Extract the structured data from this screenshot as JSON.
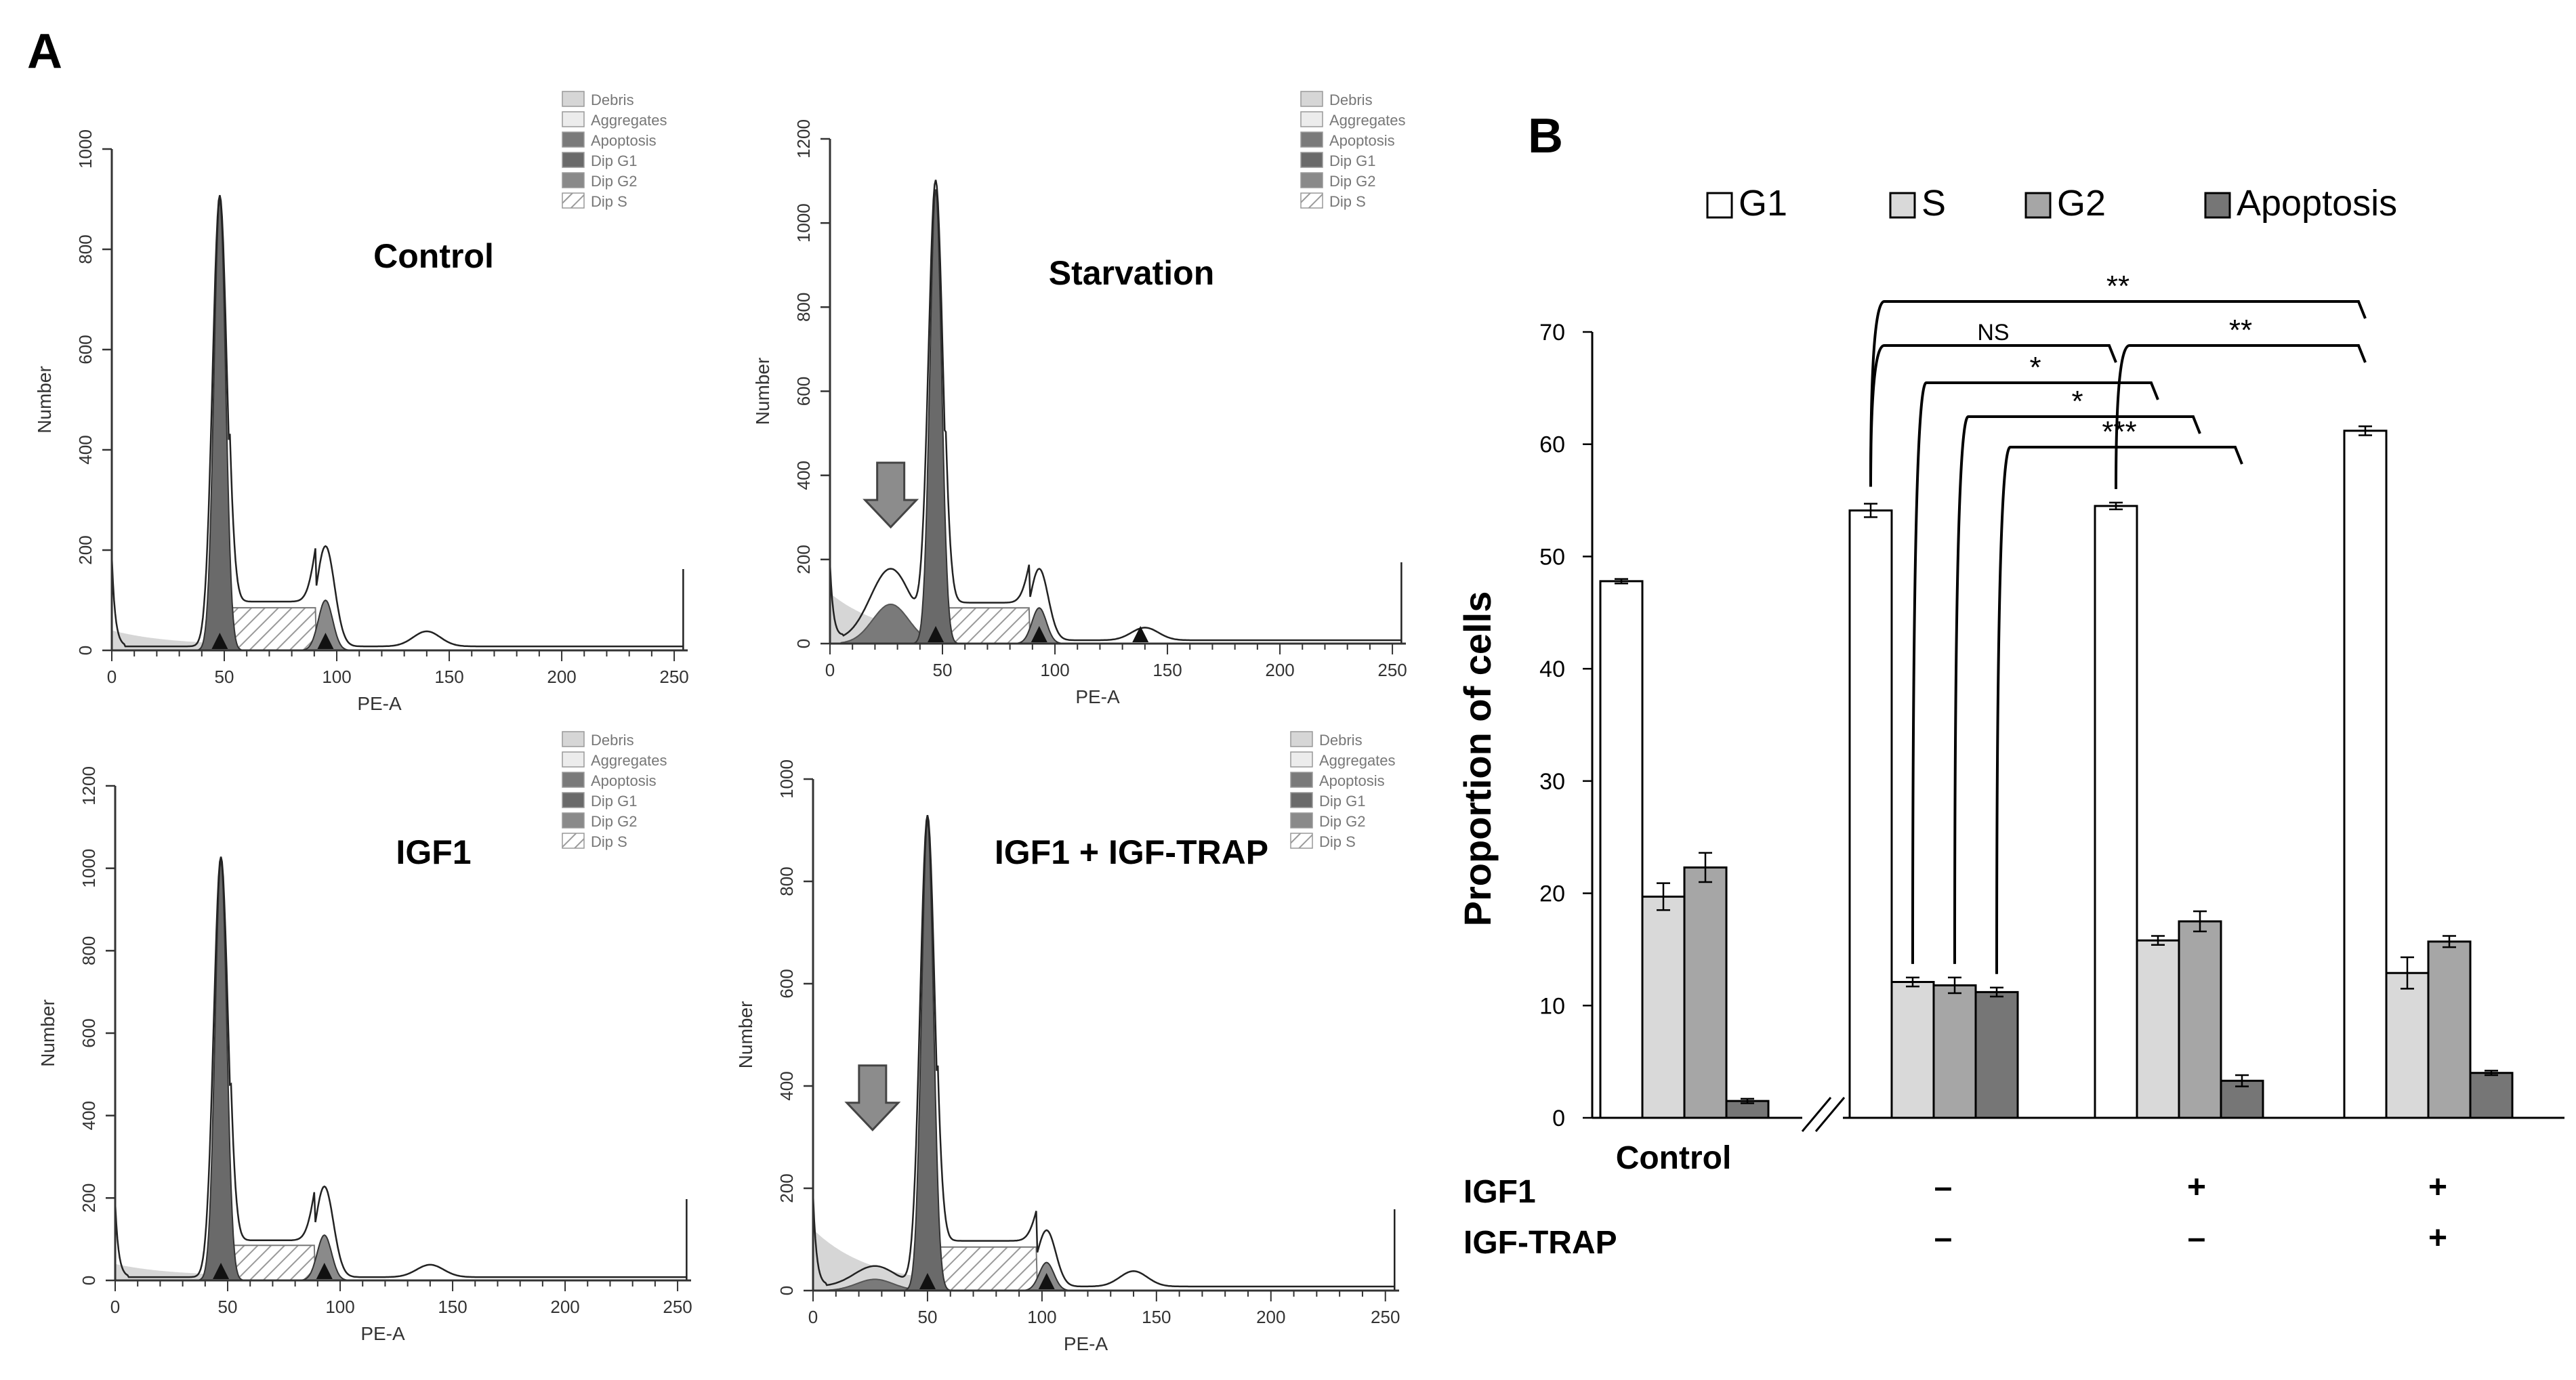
{
  "panel_a_label": "A",
  "panel_b_label": "B",
  "colors": {
    "debris": "#d6d6d6",
    "aggregates": "#ececec",
    "apoptosis": "#7a7a7a",
    "dip_g1": "#6a6a6a",
    "dip_g2": "#8a8a8a",
    "hatch": "#9a9a9a",
    "g1": "#ffffff",
    "s": "#d9d9d9",
    "g2": "#a6a6a6",
    "apoptosis_bar": "#767676",
    "arrow": "#8c8c8c"
  },
  "histogram_legend": [
    "Debris",
    "Aggregates",
    "Apoptosis",
    "Dip G1",
    "Dip G2",
    "Dip S"
  ],
  "histograms": [
    {
      "title": "Control",
      "xlabel": "PE-A",
      "ylabel": "Number",
      "xlim": [
        0,
        256
      ],
      "ylim": [
        0,
        1000
      ],
      "yticks": [
        0,
        200,
        400,
        600,
        800,
        1000
      ],
      "xticks": [
        0,
        50,
        100,
        150,
        200,
        250
      ],
      "g1_peak": 900,
      "g2_peak": 200,
      "apoptosis_peak": 0,
      "arrow": false,
      "markers": [
        48,
        95
      ]
    },
    {
      "title": "Starvation",
      "xlabel": "PE-A",
      "ylabel": "Number",
      "xlim": [
        0,
        256
      ],
      "ylim": [
        0,
        1200
      ],
      "yticks": [
        0,
        200,
        400,
        600,
        800,
        1000,
        1200
      ],
      "xticks": [
        0,
        50,
        100,
        150,
        200,
        250
      ],
      "g1_peak": 1080,
      "g2_peak": 170,
      "apoptosis_peak": 170,
      "arrow": true,
      "markers": [
        47,
        93,
        138
      ]
    },
    {
      "title": "IGF1",
      "xlabel": "PE-A",
      "ylabel": "Number",
      "xlim": [
        0,
        256
      ],
      "ylim": [
        0,
        1200
      ],
      "yticks": [
        0,
        200,
        400,
        600,
        800,
        1000,
        1200
      ],
      "xticks": [
        0,
        50,
        100,
        150,
        200,
        250
      ],
      "g1_peak": 1020,
      "g2_peak": 220,
      "apoptosis_peak": 0,
      "arrow": false,
      "markers": [
        47,
        93
      ]
    },
    {
      "title": "IGF1 + IGF-TRAP",
      "xlabel": "PE-A",
      "ylabel": "Number",
      "xlim": [
        0,
        256
      ],
      "ylim": [
        0,
        1000
      ],
      "yticks": [
        0,
        200,
        400,
        600,
        800,
        1000
      ],
      "xticks": [
        0,
        50,
        100,
        150,
        200,
        250
      ],
      "g1_peak": 920,
      "g2_peak": 110,
      "apoptosis_peak": 40,
      "arrow": true,
      "markers": [
        50,
        102
      ]
    }
  ],
  "chart_data": {
    "type": "bar",
    "ylabel": "Proportion of cells",
    "ylim": [
      0,
      70
    ],
    "yticks": [
      0,
      10,
      20,
      30,
      40,
      50,
      60,
      70
    ],
    "legend_position": "top",
    "series": [
      {
        "name": "G1",
        "values": [
          47.8,
          54.1,
          54.5,
          61.2
        ],
        "errors": [
          0.2,
          0.6,
          0.3,
          0.4
        ]
      },
      {
        "name": "S",
        "values": [
          19.7,
          12.1,
          15.8,
          12.9
        ],
        "errors": [
          1.2,
          0.4,
          0.4,
          1.4
        ]
      },
      {
        "name": "G2",
        "values": [
          22.3,
          11.8,
          17.5,
          15.7
        ],
        "errors": [
          1.3,
          0.7,
          0.9,
          0.5
        ]
      },
      {
        "name": "Apoptosis",
        "values": [
          1.5,
          11.2,
          3.3,
          4.0
        ],
        "errors": [
          0.2,
          0.4,
          0.5,
          0.2
        ]
      }
    ],
    "groups": [
      {
        "label": "Control",
        "igf1": "",
        "igf_trap": ""
      },
      {
        "label": "",
        "igf1": "–",
        "igf_trap": "–"
      },
      {
        "label": "",
        "igf1": "+",
        "igf_trap": "–"
      },
      {
        "label": "",
        "igf1": "+",
        "igf_trap": "+"
      }
    ],
    "row_labels": [
      "IGF1",
      "IGF-TRAP"
    ],
    "significance": [
      {
        "label": "**",
        "from": [
          1,
          0
        ],
        "to": [
          3,
          0
        ]
      },
      {
        "label": "NS",
        "from": [
          1,
          0
        ],
        "to": [
          2,
          0
        ]
      },
      {
        "label": "**",
        "from": [
          2,
          0
        ],
        "to": [
          3,
          0
        ]
      },
      {
        "label": "*",
        "from": [
          1,
          1
        ],
        "to": [
          2,
          1
        ]
      },
      {
        "label": "*",
        "from": [
          1,
          2
        ],
        "to": [
          2,
          2
        ]
      },
      {
        "label": "***",
        "from": [
          1,
          3
        ],
        "to": [
          2,
          3
        ]
      }
    ]
  }
}
